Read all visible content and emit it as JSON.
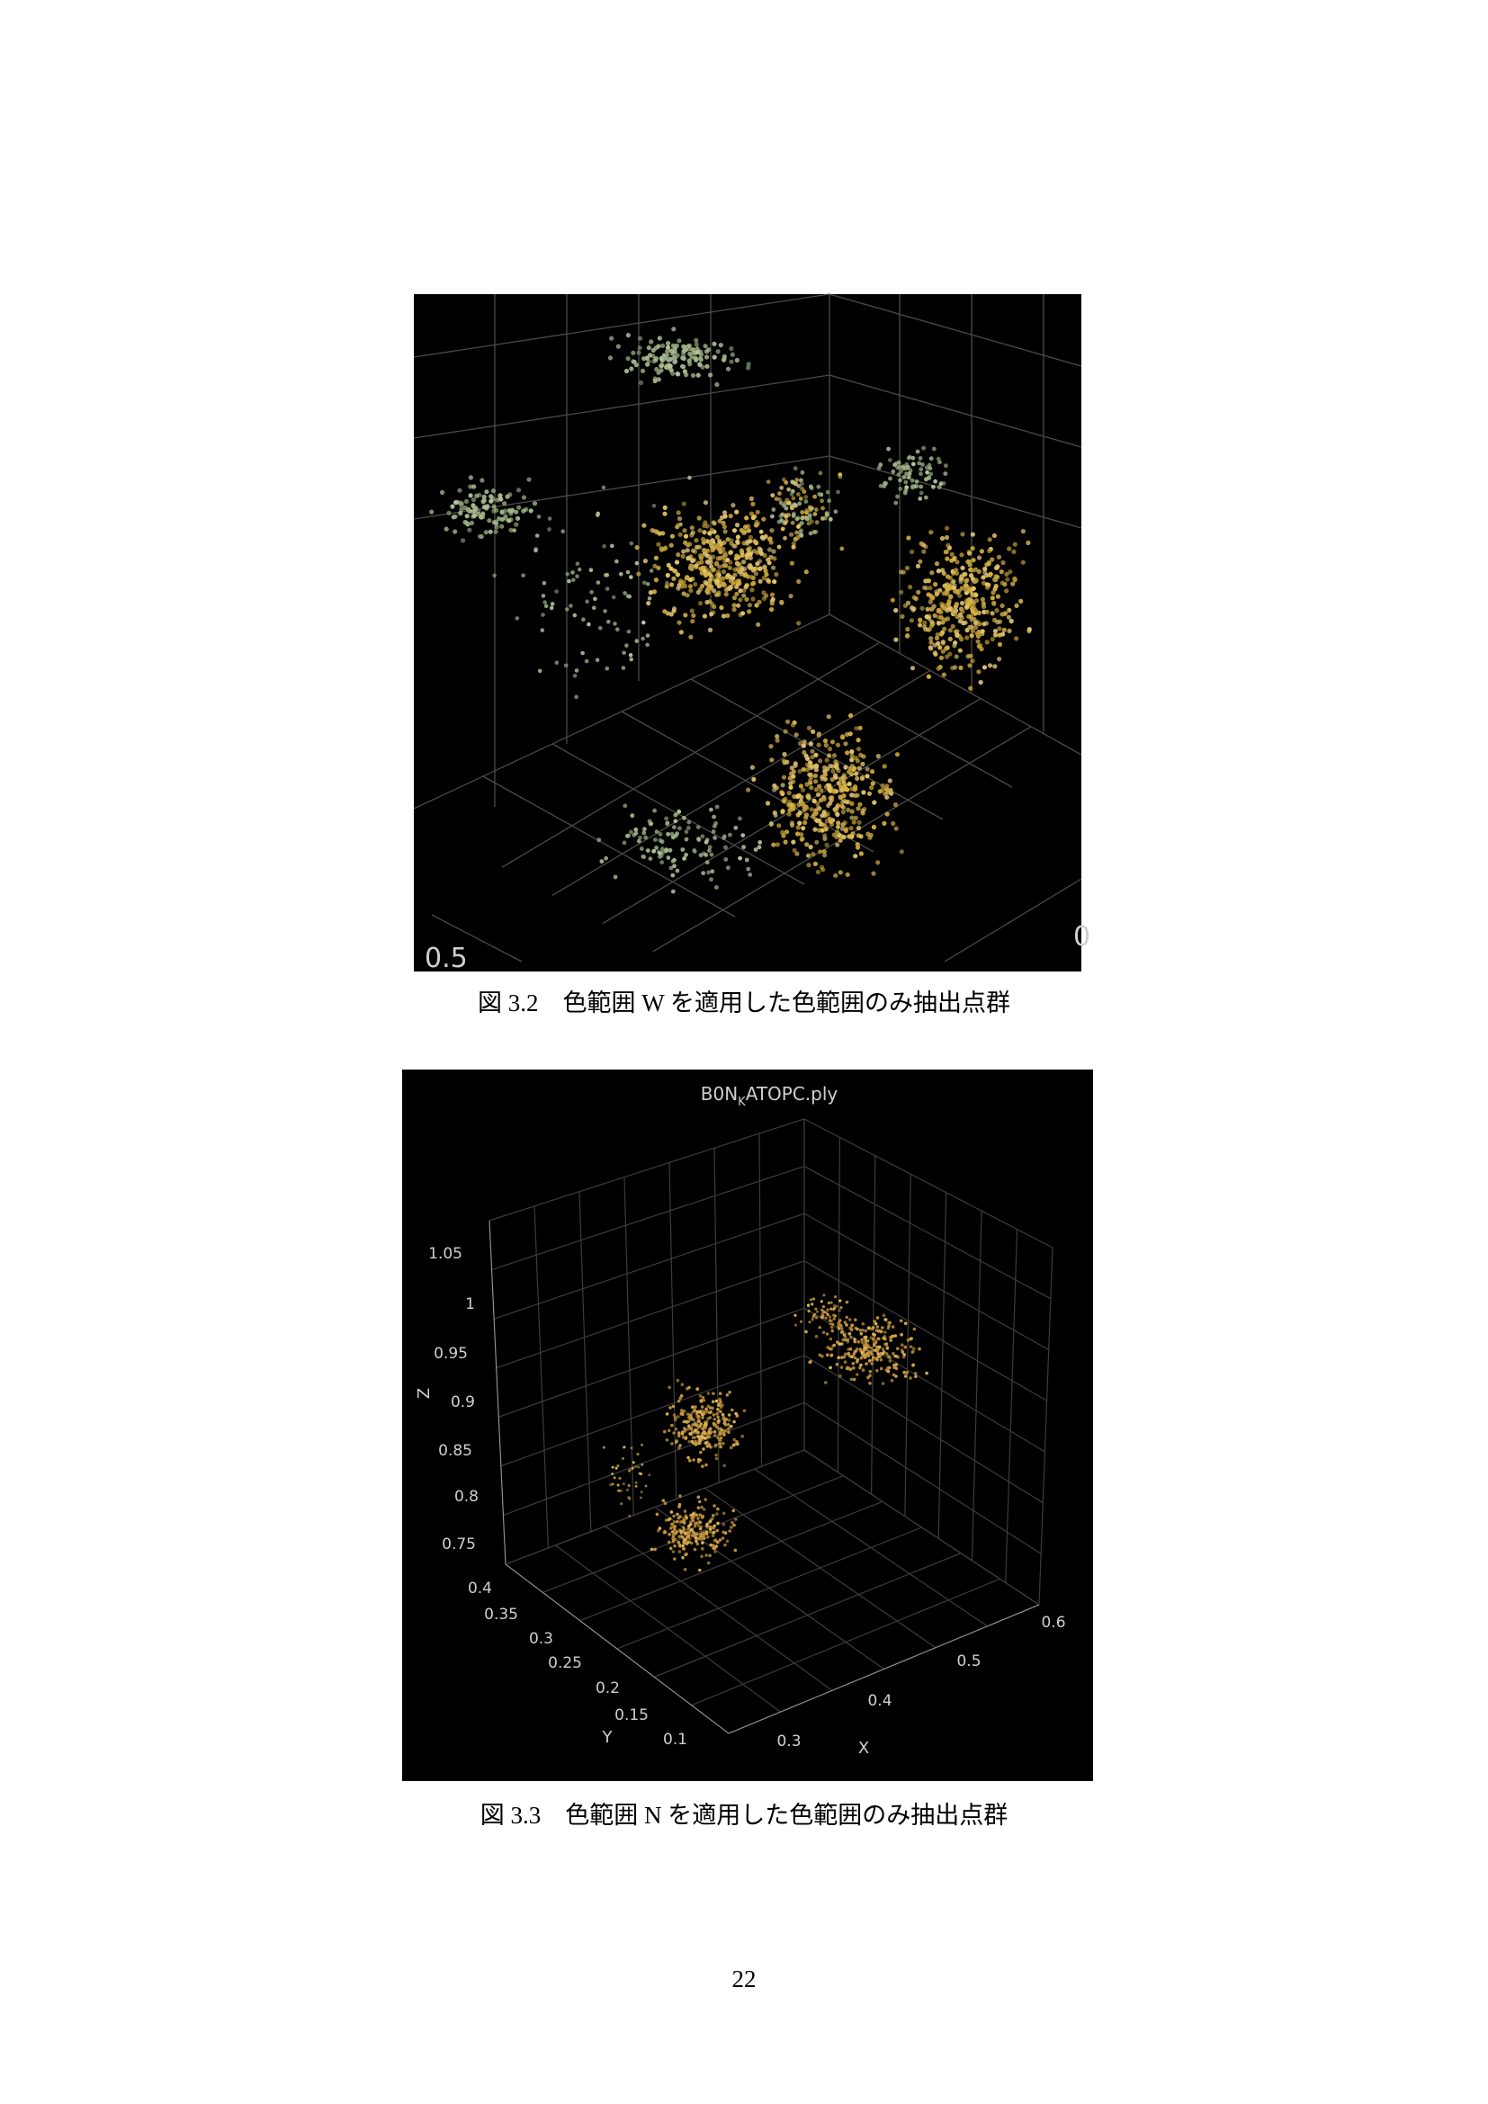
{
  "figures": [
    {
      "axis_labels": [
        "0.5",
        "0"
      ],
      "caption": "図 3.2　色範囲 W を適用した色範囲のみ抽出点群"
    },
    {
      "title": {
        "text": "B0N",
        "subscript": "K",
        "suffix": "ATOPC.ply"
      },
      "z_label": "Z",
      "z_ticks": [
        1.05,
        1,
        0.95,
        0.9,
        0.85,
        0.8,
        0.75
      ],
      "y_label": "Y",
      "y_ticks": [
        0.4,
        0.35,
        0.3,
        0.25,
        0.2,
        0.15,
        0.1
      ],
      "x_label": "X",
      "x_ticks": [
        0.3,
        0.4,
        0.5,
        0.6
      ],
      "caption": "図 3.3　色範囲 N を適用した色範囲のみ抽出点群"
    }
  ],
  "page_number": "22"
}
